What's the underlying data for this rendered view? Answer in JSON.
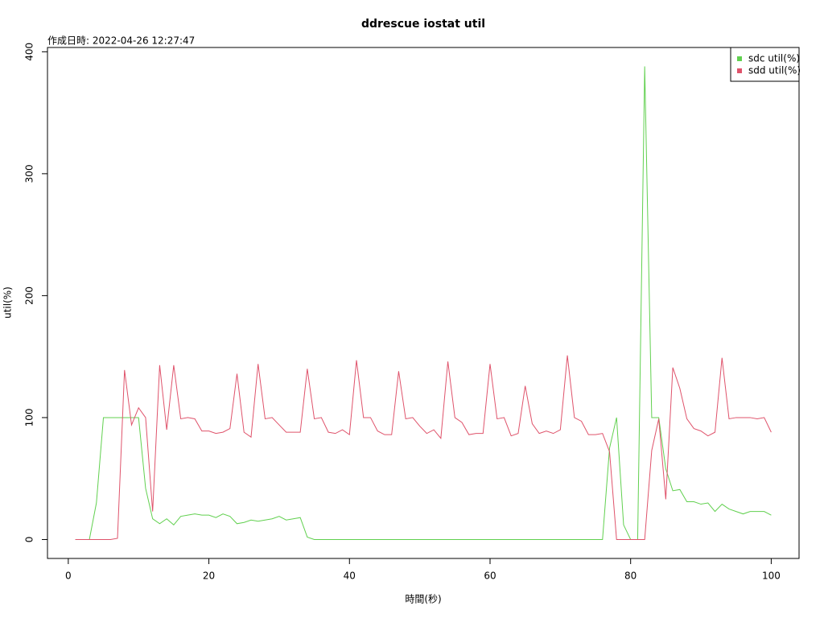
{
  "chart_data": {
    "type": "line",
    "title": "ddrescue iostat util",
    "subtitle": "作成日時: 2022-04-26 12:27:47",
    "x_label": "時間(秒)",
    "y_label": "util(%)",
    "x": [
      1,
      2,
      3,
      4,
      5,
      6,
      7,
      8,
      9,
      10,
      11,
      12,
      13,
      14,
      15,
      16,
      17,
      18,
      19,
      20,
      21,
      22,
      23,
      24,
      25,
      26,
      27,
      28,
      29,
      30,
      31,
      32,
      33,
      34,
      35,
      36,
      37,
      38,
      39,
      40,
      41,
      42,
      43,
      44,
      45,
      46,
      47,
      48,
      49,
      50,
      51,
      52,
      53,
      54,
      55,
      56,
      57,
      58,
      59,
      60,
      61,
      62,
      63,
      64,
      65,
      66,
      67,
      68,
      69,
      70,
      71,
      72,
      73,
      74,
      75,
      76,
      77,
      78,
      79,
      80,
      81,
      82,
      83,
      84,
      85,
      86,
      87,
      88,
      89,
      90,
      91,
      92,
      93,
      94,
      95,
      96,
      97,
      98,
      99,
      100
    ],
    "series": [
      {
        "name": "sdc util(%)",
        "color": "#61d04f",
        "values": [
          0,
          0,
          0,
          30,
          100,
          100,
          100,
          100,
          100,
          100,
          42,
          17,
          13,
          17,
          12,
          19,
          20,
          21,
          20,
          20,
          18,
          21,
          19,
          13,
          14,
          16,
          15,
          16,
          17,
          19,
          16,
          17,
          18,
          2,
          0,
          0,
          0,
          0,
          0,
          0,
          0,
          0,
          0,
          0,
          0,
          0,
          0,
          0,
          0,
          0,
          0,
          0,
          0,
          0,
          0,
          0,
          0,
          0,
          0,
          0,
          0,
          0,
          0,
          0,
          0,
          0,
          0,
          0,
          0,
          0,
          0,
          0,
          0,
          0,
          0,
          0,
          75,
          100,
          12,
          0,
          0,
          388,
          100,
          100,
          58,
          40,
          41,
          31,
          31,
          29,
          30,
          23,
          29,
          25,
          23,
          21,
          23,
          23,
          23,
          20
        ]
      },
      {
        "name": "sdd util(%)",
        "color": "#df536b",
        "values": [
          0,
          0,
          0,
          0,
          0,
          0,
          1,
          139,
          94,
          108,
          100,
          23,
          143,
          90,
          143,
          99,
          100,
          99,
          89,
          89,
          87,
          88,
          91,
          136,
          88,
          84,
          144,
          99,
          100,
          94,
          88,
          88,
          88,
          140,
          99,
          100,
          88,
          87,
          90,
          86,
          147,
          100,
          100,
          89,
          86,
          86,
          138,
          99,
          100,
          93,
          87,
          90,
          83,
          146,
          100,
          96,
          86,
          87,
          87,
          144,
          99,
          100,
          85,
          87,
          126,
          95,
          87,
          89,
          87,
          90,
          151,
          100,
          97,
          86,
          86,
          87,
          72,
          0,
          0,
          0,
          0,
          0,
          73,
          99,
          33,
          141,
          124,
          99,
          91,
          89,
          85,
          88,
          149,
          99,
          100,
          100,
          100,
          99,
          100,
          88
        ]
      }
    ],
    "xlim": [
      -2.96,
      103.96
    ],
    "ylim": [
      -15.52,
      403.52
    ],
    "xticks": [
      0,
      20,
      40,
      60,
      80,
      100
    ],
    "yticks": [
      0,
      100,
      200,
      300,
      400
    ],
    "legend": "top-right"
  }
}
